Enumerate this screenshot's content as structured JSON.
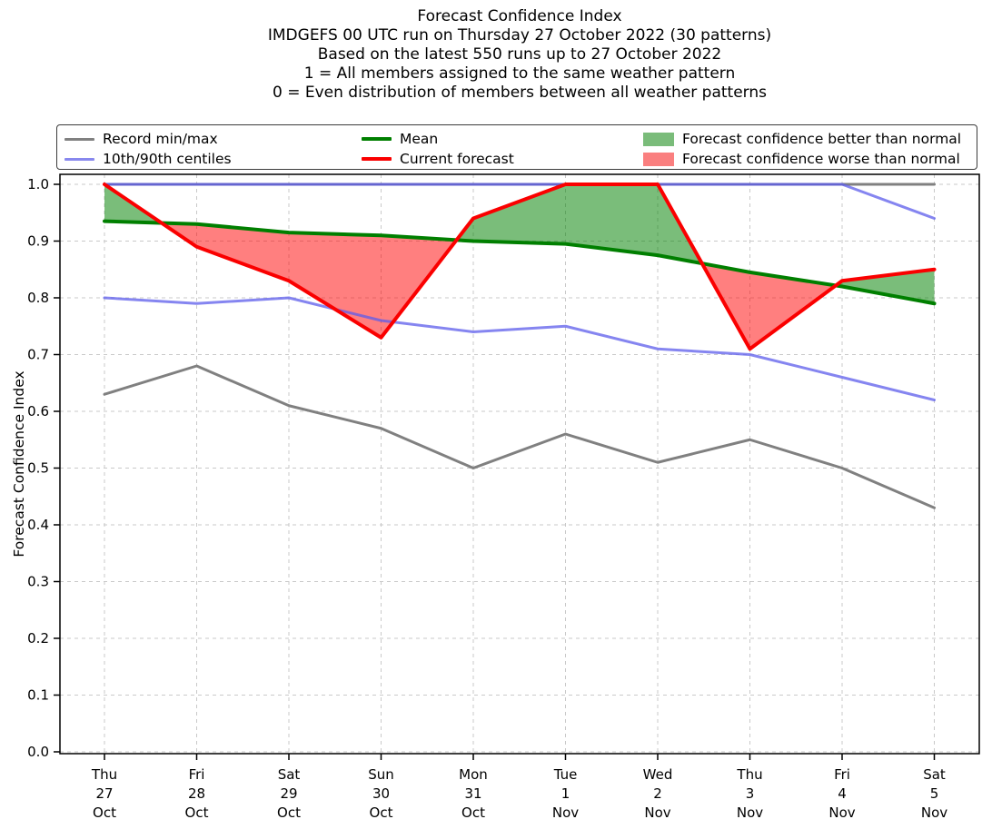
{
  "header": {
    "lines": [
      "Forecast Confidence Index",
      "IMDGEFS 00 UTC run on Thursday 27 October 2022 (30 patterns)",
      "Based on the latest 550 runs up to 27 October 2022",
      "1 = All members assigned to the same weather pattern",
      "0 = Even distribution of members between all weather patterns"
    ]
  },
  "legend": {
    "items": [
      {
        "label": "Record min/max",
        "type": "line",
        "color": "#808080"
      },
      {
        "label": "10th/90th centiles",
        "type": "line",
        "color": "#8888ee"
      },
      {
        "label": "Mean",
        "type": "line",
        "color": "#007f00"
      },
      {
        "label": "Current forecast",
        "type": "line",
        "color": "#fa0000"
      },
      {
        "label": "Forecast confidence better than normal",
        "type": "patch",
        "color": "#7abc7a"
      },
      {
        "label": "Forecast confidence worse than normal",
        "type": "patch",
        "color": "#fa7f7f"
      }
    ]
  },
  "chart_data": {
    "type": "line",
    "title": "Forecast Confidence Index",
    "ylabel": "Forecast Confidence Index",
    "ylim": [
      0.0,
      1.0
    ],
    "ytick_step": 0.1,
    "grid": true,
    "categories": [
      "Thu 27 Oct",
      "Fri 28 Oct",
      "Sat 29 Oct",
      "Sun 30 Oct",
      "Mon 31 Oct",
      "Tue 1 Nov",
      "Wed 2 Nov",
      "Thu 3 Nov",
      "Fri 4 Nov",
      "Sat 5 Nov"
    ],
    "series": [
      {
        "name": "Record max",
        "color": "#808080",
        "values": [
          1.0,
          1.0,
          1.0,
          1.0,
          1.0,
          1.0,
          1.0,
          1.0,
          1.0,
          1.0
        ]
      },
      {
        "name": "Record min",
        "color": "#808080",
        "values": [
          0.63,
          0.68,
          0.61,
          0.57,
          0.5,
          0.56,
          0.51,
          0.55,
          0.5,
          0.43
        ]
      },
      {
        "name": "90th centile",
        "color": "rgba(92,92,235,0.75)",
        "values": [
          1.0,
          1.0,
          1.0,
          1.0,
          1.0,
          1.0,
          1.0,
          1.0,
          1.0,
          0.94
        ]
      },
      {
        "name": "10th centile",
        "color": "rgba(92,92,235,0.75)",
        "values": [
          0.8,
          0.79,
          0.8,
          0.76,
          0.74,
          0.75,
          0.71,
          0.7,
          0.66,
          0.62
        ]
      },
      {
        "name": "Mean",
        "color": "#007f00",
        "values": [
          0.935,
          0.93,
          0.915,
          0.91,
          0.9,
          0.895,
          0.875,
          0.845,
          0.82,
          0.79
        ]
      },
      {
        "name": "Current forecast",
        "color": "#fa0000",
        "values": [
          1.0,
          0.89,
          0.83,
          0.73,
          0.94,
          1.0,
          1.0,
          0.71,
          0.83,
          0.85
        ]
      }
    ],
    "fills": {
      "between": [
        "Current forecast",
        "Mean"
      ],
      "better_color": "rgba(0,128,0,0.52)",
      "worse_color": "rgba(255,0,0,0.5)",
      "better_label": "Forecast confidence better than normal",
      "worse_label": "Forecast confidence worse than normal"
    },
    "legend_position": "top",
    "grid_color": "#c9c9c9"
  }
}
